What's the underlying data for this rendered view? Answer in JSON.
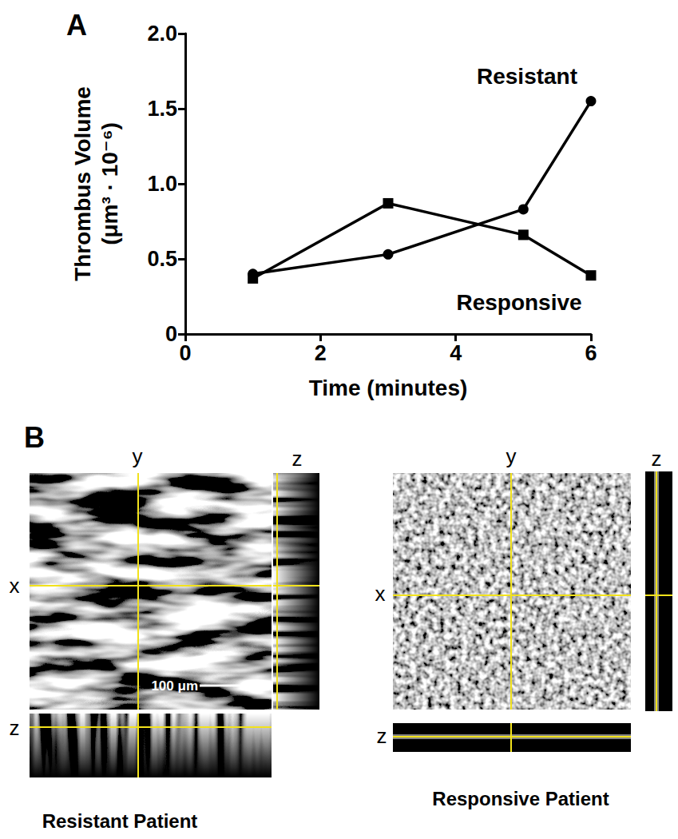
{
  "chart_data": {
    "type": "line",
    "title": "A",
    "x_label": "Time (minutes)",
    "y_label": "Thrombus Volume\n(μm³ · 10⁻⁶)",
    "x": [
      1,
      3,
      5,
      6
    ],
    "series": [
      {
        "name": "Resistant",
        "color": "#000000",
        "marker": "circle",
        "line_style": "solid",
        "values": [
          0.4,
          0.53,
          0.83,
          1.55
        ]
      },
      {
        "name": "Responsive",
        "color": "#000000",
        "marker": "square",
        "line_style": "solid",
        "values": [
          0.37,
          0.87,
          0.66,
          0.39
        ]
      }
    ],
    "xlim": [
      0,
      6
    ],
    "xticks": [
      0,
      2,
      4,
      6
    ],
    "ylim": [
      0,
      2
    ],
    "yticks": [
      0,
      0.5,
      {
        "value": 1,
        "label": "1.0"
      },
      1.5,
      {
        "value": 2,
        "label": "2.0"
      }
    ],
    "grid": false
  },
  "panel_b": {
    "label": "B",
    "scale_bar": "100 μm",
    "images": [
      {
        "caption": "Resistant Patient",
        "axes": {
          "x": "x",
          "y": "y",
          "z": "z"
        }
      },
      {
        "caption": "Responsive Patient",
        "axes": {
          "x": "x",
          "y": "y",
          "z": "z"
        }
      }
    ]
  }
}
